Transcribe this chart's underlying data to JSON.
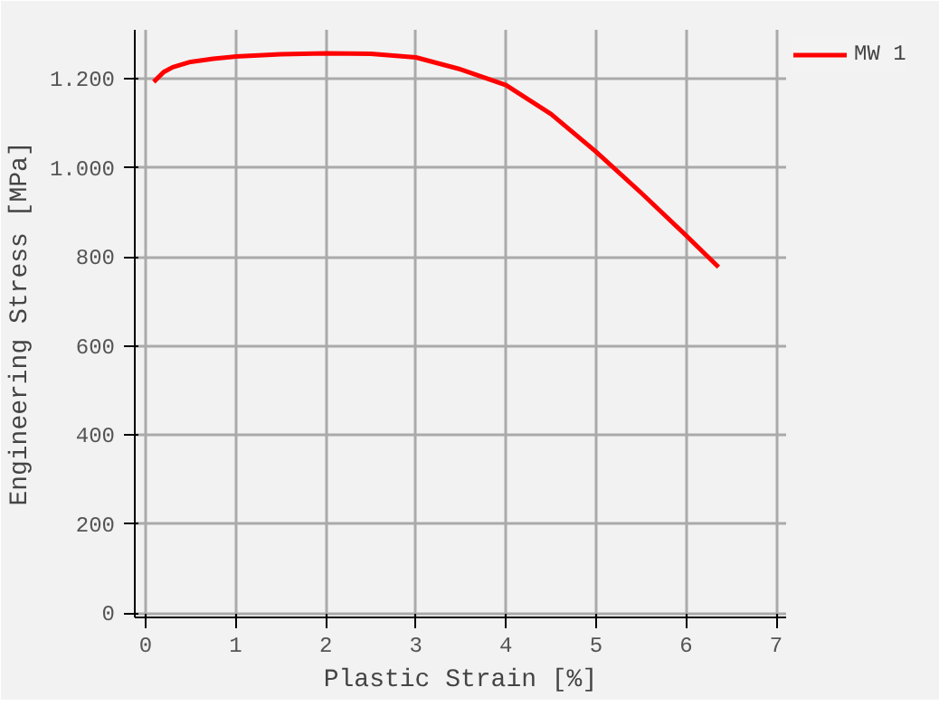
{
  "chart_data": {
    "type": "line",
    "xlabel": "Plastic Strain [%]",
    "ylabel": "Engineering Stress [MPa]",
    "xlim": [
      -0.12,
      7.11
    ],
    "ylim": [
      -10,
      1310
    ],
    "xticks": [
      0,
      1,
      2,
      3,
      4,
      5,
      6,
      7
    ],
    "yticks": [
      0,
      200,
      400,
      600,
      800,
      {
        "value": 1000,
        "label": "1.000"
      },
      {
        "value": 1200,
        "label": "1.200"
      }
    ],
    "grid": true,
    "legend": "top right",
    "marker": "none",
    "line_style": "solid",
    "series": [
      {
        "name": "MW 1",
        "color": "#ff0000",
        "x": [
          0.09,
          0.2,
          0.3,
          0.5,
          0.75,
          1,
          1.5,
          2,
          2.5,
          3,
          3.5,
          4,
          4.5,
          5,
          5.5,
          6,
          6.36
        ],
        "values": [
          1193,
          1215,
          1226,
          1238,
          1245,
          1250,
          1255,
          1257,
          1256,
          1248,
          1221,
          1186,
          1121,
          1036,
          944,
          848,
          777
        ]
      }
    ]
  }
}
